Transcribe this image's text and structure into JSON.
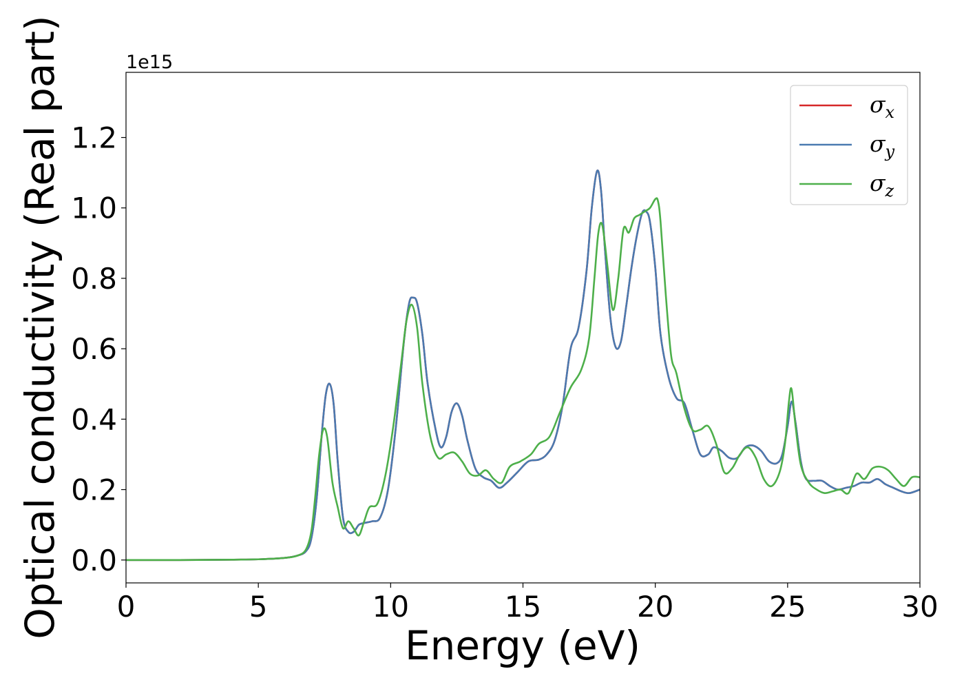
{
  "chart_data": {
    "type": "line",
    "title": "",
    "xlabel": "Energy (eV)",
    "ylabel": "Optical conductivity (Real part)",
    "y_offset_label": "1e15",
    "xlim": [
      0,
      30
    ],
    "ylim": [
      -0.065,
      1.385
    ],
    "xticks": [
      0,
      5,
      10,
      15,
      20,
      25,
      30
    ],
    "xtick_labels": [
      "0",
      "5",
      "10",
      "15",
      "20",
      "25",
      "30"
    ],
    "yticks": [
      0.0,
      0.2,
      0.4,
      0.6,
      0.8,
      1.0,
      1.2
    ],
    "ytick_labels": [
      "0.0",
      "0.2",
      "0.4",
      "0.6",
      "0.8",
      "1.0",
      "1.2"
    ],
    "grid": false,
    "legend_position": "top-right",
    "series": [
      {
        "name": "σx",
        "symbol": "σ",
        "subscript": "x",
        "color": "#d62728",
        "x": [
          0,
          2,
          4,
          5,
          6,
          6.5,
          6.8,
          7.0,
          7.2,
          7.4,
          7.55,
          7.7,
          7.85,
          8.0,
          8.2,
          8.4,
          8.6,
          8.8,
          9.0,
          9.3,
          9.6,
          9.9,
          10.2,
          10.5,
          10.7,
          10.85,
          11.0,
          11.2,
          11.4,
          11.7,
          11.9,
          12.1,
          12.3,
          12.5,
          12.7,
          12.9,
          13.2,
          13.5,
          13.8,
          14.1,
          14.4,
          14.8,
          15.2,
          15.6,
          15.9,
          16.2,
          16.5,
          16.8,
          17.1,
          17.4,
          17.6,
          17.8,
          17.95,
          18.1,
          18.3,
          18.5,
          18.7,
          18.9,
          19.1,
          19.3,
          19.5,
          19.65,
          19.8,
          20.0,
          20.2,
          20.5,
          20.8,
          21.1,
          21.4,
          21.7,
          22.0,
          22.2,
          22.5,
          22.8,
          23.1,
          23.4,
          23.7,
          24.0,
          24.3,
          24.6,
          24.8,
          25.0,
          25.15,
          25.3,
          25.5,
          25.7,
          26.0,
          26.3,
          26.6,
          26.9,
          27.2,
          27.5,
          27.8,
          28.1,
          28.4,
          28.7,
          29.0,
          29.3,
          29.6,
          30.0
        ],
        "values": [
          0.0,
          0.0,
          0.001,
          0.002,
          0.006,
          0.013,
          0.025,
          0.06,
          0.17,
          0.36,
          0.47,
          0.5,
          0.44,
          0.28,
          0.12,
          0.08,
          0.08,
          0.1,
          0.105,
          0.11,
          0.12,
          0.2,
          0.38,
          0.62,
          0.73,
          0.745,
          0.73,
          0.64,
          0.5,
          0.37,
          0.32,
          0.35,
          0.42,
          0.445,
          0.41,
          0.34,
          0.26,
          0.235,
          0.225,
          0.205,
          0.22,
          0.25,
          0.28,
          0.285,
          0.3,
          0.34,
          0.44,
          0.6,
          0.66,
          0.82,
          1.0,
          1.105,
          1.05,
          0.88,
          0.69,
          0.605,
          0.62,
          0.72,
          0.83,
          0.92,
          0.985,
          0.99,
          0.96,
          0.83,
          0.64,
          0.52,
          0.46,
          0.445,
          0.37,
          0.3,
          0.3,
          0.32,
          0.31,
          0.29,
          0.29,
          0.32,
          0.325,
          0.31,
          0.28,
          0.275,
          0.3,
          0.38,
          0.45,
          0.39,
          0.28,
          0.23,
          0.225,
          0.225,
          0.21,
          0.2,
          0.205,
          0.21,
          0.22,
          0.22,
          0.23,
          0.215,
          0.205,
          0.195,
          0.19,
          0.2
        ]
      },
      {
        "name": "σy",
        "symbol": "σ",
        "subscript": "y",
        "color": "#4a7ab0",
        "x": [
          0,
          2,
          4,
          5,
          6,
          6.5,
          6.8,
          7.0,
          7.2,
          7.4,
          7.55,
          7.7,
          7.85,
          8.0,
          8.2,
          8.4,
          8.6,
          8.8,
          9.0,
          9.3,
          9.6,
          9.9,
          10.2,
          10.5,
          10.7,
          10.85,
          11.0,
          11.2,
          11.4,
          11.7,
          11.9,
          12.1,
          12.3,
          12.5,
          12.7,
          12.9,
          13.2,
          13.5,
          13.8,
          14.1,
          14.4,
          14.8,
          15.2,
          15.6,
          15.9,
          16.2,
          16.5,
          16.8,
          17.1,
          17.4,
          17.6,
          17.8,
          17.95,
          18.1,
          18.3,
          18.5,
          18.7,
          18.9,
          19.1,
          19.3,
          19.5,
          19.65,
          19.8,
          20.0,
          20.2,
          20.5,
          20.8,
          21.1,
          21.4,
          21.7,
          22.0,
          22.2,
          22.5,
          22.8,
          23.1,
          23.4,
          23.7,
          24.0,
          24.3,
          24.6,
          24.8,
          25.0,
          25.15,
          25.3,
          25.5,
          25.7,
          26.0,
          26.3,
          26.6,
          26.9,
          27.2,
          27.5,
          27.8,
          28.1,
          28.4,
          28.7,
          29.0,
          29.3,
          29.6,
          30.0
        ],
        "values": [
          0.0,
          0.0,
          0.001,
          0.002,
          0.006,
          0.013,
          0.025,
          0.06,
          0.17,
          0.36,
          0.47,
          0.5,
          0.44,
          0.28,
          0.12,
          0.08,
          0.08,
          0.1,
          0.105,
          0.11,
          0.12,
          0.2,
          0.38,
          0.62,
          0.73,
          0.745,
          0.73,
          0.64,
          0.5,
          0.37,
          0.32,
          0.35,
          0.42,
          0.445,
          0.41,
          0.34,
          0.26,
          0.235,
          0.225,
          0.205,
          0.22,
          0.25,
          0.28,
          0.285,
          0.3,
          0.34,
          0.44,
          0.6,
          0.66,
          0.82,
          1.0,
          1.105,
          1.05,
          0.88,
          0.69,
          0.605,
          0.62,
          0.72,
          0.83,
          0.92,
          0.985,
          0.99,
          0.96,
          0.83,
          0.64,
          0.52,
          0.46,
          0.445,
          0.37,
          0.3,
          0.3,
          0.32,
          0.31,
          0.29,
          0.29,
          0.32,
          0.325,
          0.31,
          0.28,
          0.275,
          0.3,
          0.38,
          0.45,
          0.39,
          0.28,
          0.23,
          0.225,
          0.225,
          0.21,
          0.2,
          0.205,
          0.21,
          0.22,
          0.22,
          0.23,
          0.215,
          0.205,
          0.195,
          0.19,
          0.2
        ]
      },
      {
        "name": "σz",
        "symbol": "σ",
        "subscript": "z",
        "color": "#4daf4a",
        "x": [
          0,
          2,
          4,
          5,
          6,
          6.5,
          6.8,
          7.0,
          7.15,
          7.3,
          7.45,
          7.6,
          7.8,
          8.0,
          8.2,
          8.4,
          8.6,
          8.8,
          9.0,
          9.2,
          9.5,
          9.8,
          10.1,
          10.4,
          10.6,
          10.8,
          11.0,
          11.2,
          11.5,
          11.8,
          12.1,
          12.4,
          12.7,
          13.0,
          13.3,
          13.6,
          13.9,
          14.2,
          14.5,
          14.9,
          15.3,
          15.6,
          16.0,
          16.4,
          16.8,
          17.2,
          17.5,
          17.7,
          17.85,
          18.0,
          18.2,
          18.4,
          18.6,
          18.8,
          19.0,
          19.2,
          19.4,
          19.6,
          19.8,
          20.0,
          20.1,
          20.2,
          20.4,
          20.6,
          20.8,
          21.1,
          21.4,
          21.7,
          22.0,
          22.3,
          22.6,
          22.9,
          23.2,
          23.5,
          23.8,
          24.1,
          24.4,
          24.7,
          24.9,
          25.05,
          25.15,
          25.3,
          25.5,
          25.8,
          26.1,
          26.4,
          26.7,
          27.0,
          27.3,
          27.6,
          27.9,
          28.2,
          28.5,
          28.8,
          29.1,
          29.4,
          29.7,
          30.0
        ],
        "values": [
          0.0,
          0.0,
          0.001,
          0.002,
          0.006,
          0.013,
          0.03,
          0.08,
          0.18,
          0.3,
          0.37,
          0.35,
          0.22,
          0.15,
          0.09,
          0.11,
          0.09,
          0.07,
          0.11,
          0.15,
          0.16,
          0.24,
          0.38,
          0.56,
          0.68,
          0.725,
          0.66,
          0.5,
          0.35,
          0.29,
          0.3,
          0.305,
          0.28,
          0.245,
          0.24,
          0.255,
          0.23,
          0.22,
          0.265,
          0.28,
          0.3,
          0.33,
          0.35,
          0.42,
          0.49,
          0.54,
          0.63,
          0.8,
          0.93,
          0.95,
          0.83,
          0.71,
          0.8,
          0.94,
          0.93,
          0.97,
          0.98,
          0.99,
          1.0,
          1.025,
          1.02,
          0.96,
          0.75,
          0.58,
          0.53,
          0.43,
          0.37,
          0.37,
          0.38,
          0.33,
          0.25,
          0.26,
          0.3,
          0.32,
          0.29,
          0.23,
          0.21,
          0.25,
          0.33,
          0.45,
          0.485,
          0.38,
          0.27,
          0.22,
          0.2,
          0.19,
          0.195,
          0.2,
          0.19,
          0.245,
          0.23,
          0.26,
          0.265,
          0.255,
          0.23,
          0.21,
          0.235,
          0.235
        ]
      }
    ]
  }
}
